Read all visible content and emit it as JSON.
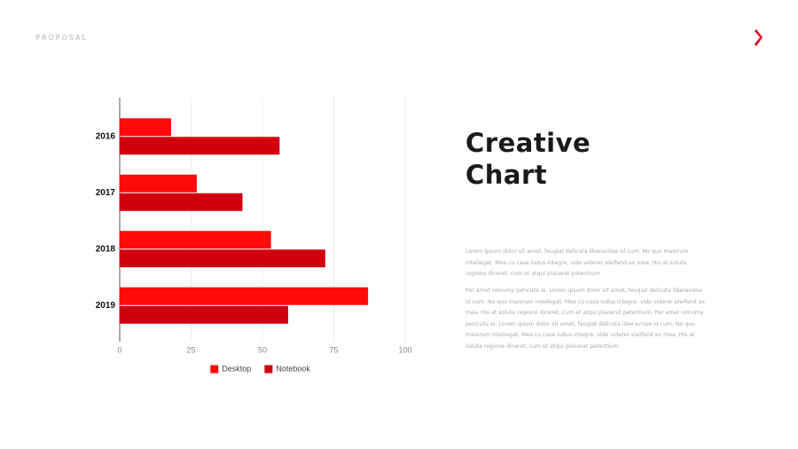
{
  "header": {
    "label": "PROPOSAL"
  },
  "title": [
    "Creative",
    "Chart"
  ],
  "paragraphs": [
    "Lorem ipsum dolor sit amet, feugiat delicata liberavisse id cum. No quo maiorum intellegat. Mea cu case ludus integre, vide viderer eleifend ex mea. His at soluta regione diceret, cum et atqui placerat petentium.",
    "Per amet nonumy periculis ei. Lorem ipsum dolor sit amet, feugiat delicata liberavisse id cum. No quo maiorum intellegat. Mea cu case ludus integre, vide viderer eleifend ex mea. His at soluta regione diceret, cum et atqui placerat petentium. Per amet nonumy periculis ei. Lorem ipsum dolor sit amet, feugiat delicata liberavisse id cum. No quo maiorum intellegat. Mea cu case ludus integre, vide viderer eleifend ex mea. His at soluta regione diceret, cum et atqui placerat petentium."
  ],
  "chart_data": {
    "type": "bar",
    "orientation": "horizontal",
    "categories": [
      "2016",
      "2017",
      "2018",
      "2019"
    ],
    "series": [
      {
        "name": "Desktop",
        "color": "#ff0a0a",
        "values": [
          18,
          27,
          53,
          87
        ]
      },
      {
        "name": "Notebook",
        "color": "#d0000e",
        "values": [
          56,
          43,
          72,
          59
        ]
      }
    ],
    "xlim": [
      0,
      100
    ],
    "xticks": [
      0,
      25,
      50,
      75,
      100
    ],
    "grid": true,
    "legend": "bottom"
  }
}
